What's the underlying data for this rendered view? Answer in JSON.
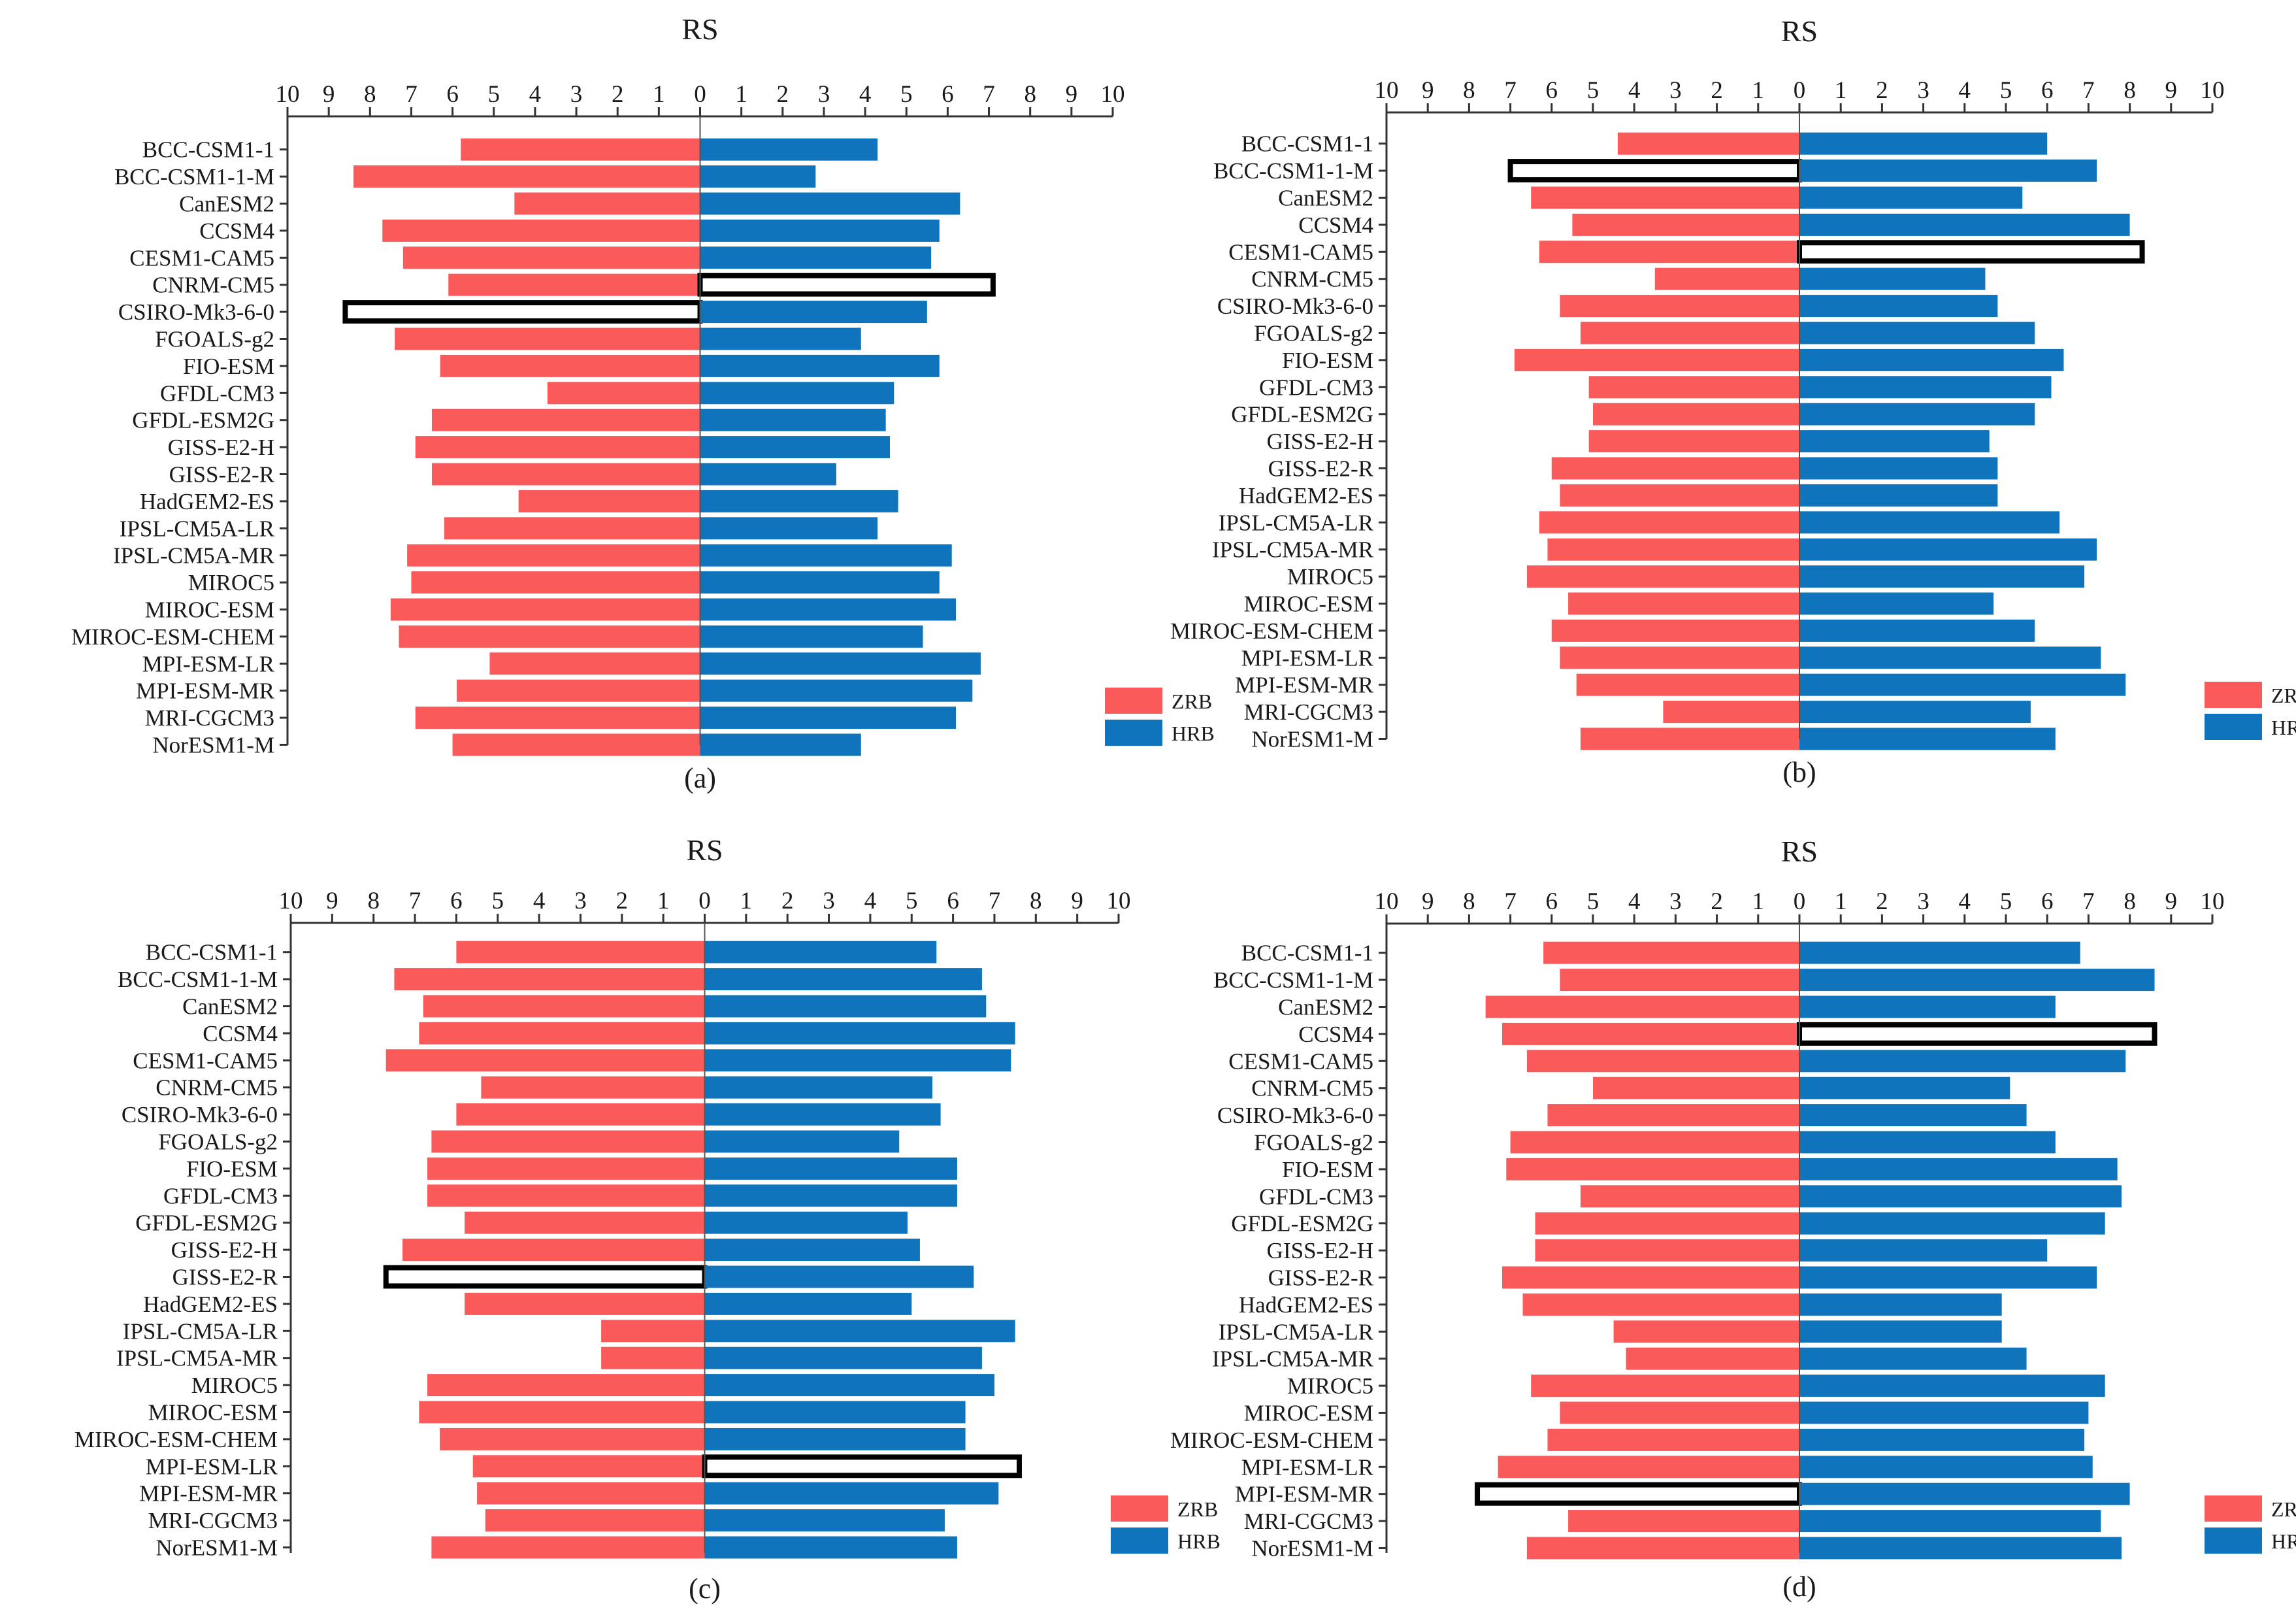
{
  "figure": {
    "panels": [
      "a",
      "b",
      "c",
      "d"
    ]
  },
  "chart_data": [
    {
      "type": "bar",
      "orientation": "horizontal-diverging",
      "panel_label": "(a)",
      "title": "RS",
      "x_ticks": [
        "10",
        "9",
        "8",
        "7",
        "6",
        "5",
        "4",
        "3",
        "2",
        "1",
        "0",
        "1",
        "2",
        "3",
        "4",
        "5",
        "6",
        "7",
        "8",
        "9",
        "10"
      ],
      "xlim": [
        -10,
        10
      ],
      "categories": [
        "BCC-CSM1-1",
        "BCC-CSM1-1-M",
        "CanESM2",
        "CCSM4",
        "CESM1-CAM5",
        "CNRM-CM5",
        "CSIRO-Mk3-6-0",
        "FGOALS-g2",
        "FIO-ESM",
        "GFDL-CM3",
        "GFDL-ESM2G",
        "GISS-E2-H",
        "GISS-E2-R",
        "HadGEM2-ES",
        "IPSL-CM5A-LR",
        "IPSL-CM5A-MR",
        "MIROC5",
        "MIROC-ESM",
        "MIROC-ESM-CHEM",
        "MPI-ESM-LR",
        "MPI-ESM-MR",
        "MRI-CGCM3",
        "NorESM1-M"
      ],
      "series": [
        {
          "name": "ZRB",
          "color": "#fa5a5a",
          "side": "left",
          "values": [
            5.8,
            8.4,
            4.5,
            7.7,
            7.2,
            6.1,
            8.6,
            7.4,
            6.3,
            3.7,
            6.5,
            6.9,
            6.5,
            4.4,
            6.2,
            7.1,
            7.0,
            7.5,
            7.3,
            5.1,
            5.9,
            6.9,
            6.0
          ],
          "highlighted": [
            false,
            false,
            false,
            false,
            false,
            false,
            true,
            false,
            false,
            false,
            false,
            false,
            false,
            false,
            false,
            false,
            false,
            false,
            false,
            false,
            false,
            false,
            false
          ]
        },
        {
          "name": "HRB",
          "color": "#0f74bb",
          "side": "right",
          "values": [
            4.3,
            2.8,
            6.3,
            5.8,
            5.6,
            7.1,
            5.5,
            3.9,
            5.8,
            4.7,
            4.5,
            4.6,
            3.3,
            4.8,
            4.3,
            6.1,
            5.8,
            6.2,
            5.4,
            6.8,
            6.6,
            6.2,
            3.9
          ],
          "highlighted": [
            false,
            false,
            false,
            false,
            false,
            true,
            false,
            false,
            false,
            false,
            false,
            false,
            false,
            false,
            false,
            false,
            false,
            false,
            false,
            false,
            false,
            false,
            false
          ]
        }
      ]
    },
    {
      "type": "bar",
      "orientation": "horizontal-diverging",
      "panel_label": "(b)",
      "title": "RS",
      "x_ticks": [
        "10",
        "9",
        "8",
        "7",
        "6",
        "5",
        "4",
        "3",
        "2",
        "1",
        "0",
        "1",
        "2",
        "3",
        "4",
        "5",
        "6",
        "7",
        "8",
        "9",
        "10"
      ],
      "xlim": [
        -10,
        10
      ],
      "categories": [
        "BCC-CSM1-1",
        "BCC-CSM1-1-M",
        "CanESM2",
        "CCSM4",
        "CESM1-CAM5",
        "CNRM-CM5",
        "CSIRO-Mk3-6-0",
        "FGOALS-g2",
        "FIO-ESM",
        "GFDL-CM3",
        "GFDL-ESM2G",
        "GISS-E2-H",
        "GISS-E2-R",
        "HadGEM2-ES",
        "IPSL-CM5A-LR",
        "IPSL-CM5A-MR",
        "MIROC5",
        "MIROC-ESM",
        "MIROC-ESM-CHEM",
        "MPI-ESM-LR",
        "MPI-ESM-MR",
        "MRI-CGCM3",
        "NorESM1-M"
      ],
      "series": [
        {
          "name": "ZRB",
          "color": "#fa5a5a",
          "side": "left",
          "values": [
            4.4,
            7.0,
            6.5,
            5.5,
            6.3,
            3.5,
            5.8,
            5.3,
            6.9,
            5.1,
            5.0,
            5.1,
            6.0,
            5.8,
            6.3,
            6.1,
            6.6,
            5.6,
            6.0,
            5.8,
            5.4,
            3.3,
            5.3
          ],
          "highlighted": [
            false,
            true,
            false,
            false,
            false,
            false,
            false,
            false,
            false,
            false,
            false,
            false,
            false,
            false,
            false,
            false,
            false,
            false,
            false,
            false,
            false,
            false,
            false
          ]
        },
        {
          "name": "HRB",
          "color": "#0f74bb",
          "side": "right",
          "values": [
            6.0,
            7.2,
            5.4,
            8.0,
            8.3,
            4.5,
            4.8,
            5.7,
            6.4,
            6.1,
            5.7,
            4.6,
            4.8,
            4.8,
            6.3,
            7.2,
            6.9,
            4.7,
            5.7,
            7.3,
            7.9,
            5.6,
            6.2
          ],
          "highlighted": [
            false,
            false,
            false,
            false,
            true,
            false,
            false,
            false,
            false,
            false,
            false,
            false,
            false,
            false,
            false,
            false,
            false,
            false,
            false,
            false,
            false,
            false,
            false
          ]
        }
      ]
    },
    {
      "type": "bar",
      "orientation": "horizontal-diverging",
      "panel_label": "(c)",
      "title": "RS",
      "x_ticks": [
        "10",
        "9",
        "8",
        "7",
        "6",
        "5",
        "4",
        "3",
        "2",
        "1",
        "0",
        "1",
        "2",
        "3",
        "4",
        "5",
        "6",
        "7",
        "8",
        "9",
        "10"
      ],
      "xlim": [
        -10,
        10
      ],
      "categories": [
        "BCC-CSM1-1",
        "BCC-CSM1-1-M",
        "CanESM2",
        "CCSM4",
        "CESM1-CAM5",
        "CNRM-CM5",
        "CSIRO-Mk3-6-0",
        "FGOALS-g2",
        "FIO-ESM",
        "GFDL-CM3",
        "GFDL-ESM2G",
        "GISS-E2-H",
        "GISS-E2-R",
        "HadGEM2-ES",
        "IPSL-CM5A-LR",
        "IPSL-CM5A-MR",
        "MIROC5",
        "MIROC-ESM",
        "MIROC-ESM-CHEM",
        "MPI-ESM-LR",
        "MPI-ESM-MR",
        "MRI-CGCM3",
        "NorESM1-M"
      ],
      "series": [
        {
          "name": "ZRB",
          "color": "#fa5a5a",
          "side": "left",
          "values": [
            6.0,
            7.5,
            6.8,
            6.9,
            7.7,
            5.4,
            6.0,
            6.6,
            6.7,
            6.7,
            5.8,
            7.3,
            7.7,
            5.8,
            2.5,
            2.5,
            6.7,
            6.9,
            6.4,
            5.6,
            5.5,
            5.3,
            6.6
          ],
          "highlighted": [
            false,
            false,
            false,
            false,
            false,
            false,
            false,
            false,
            false,
            false,
            false,
            false,
            true,
            false,
            false,
            false,
            false,
            false,
            false,
            false,
            false,
            false,
            false
          ]
        },
        {
          "name": "HRB",
          "color": "#0f74bb",
          "side": "right",
          "values": [
            5.6,
            6.7,
            6.8,
            7.5,
            7.4,
            5.5,
            5.7,
            4.7,
            6.1,
            6.1,
            4.9,
            5.2,
            6.5,
            5.0,
            7.5,
            6.7,
            7.0,
            6.3,
            6.3,
            7.6,
            7.1,
            5.8,
            6.1
          ],
          "highlighted": [
            false,
            false,
            false,
            false,
            false,
            false,
            false,
            false,
            false,
            false,
            false,
            false,
            false,
            false,
            false,
            false,
            false,
            false,
            false,
            true,
            false,
            false,
            false
          ]
        }
      ]
    },
    {
      "type": "bar",
      "orientation": "horizontal-diverging",
      "panel_label": "(d)",
      "title": "RS",
      "x_ticks": [
        "10",
        "9",
        "8",
        "7",
        "6",
        "5",
        "4",
        "3",
        "2",
        "1",
        "0",
        "1",
        "2",
        "3",
        "4",
        "5",
        "6",
        "7",
        "8",
        "9",
        "10"
      ],
      "xlim": [
        -10,
        10
      ],
      "categories": [
        "BCC-CSM1-1",
        "BCC-CSM1-1-M",
        "CanESM2",
        "CCSM4",
        "CESM1-CAM5",
        "CNRM-CM5",
        "CSIRO-Mk3-6-0",
        "FGOALS-g2",
        "FIO-ESM",
        "GFDL-CM3",
        "GFDL-ESM2G",
        "GISS-E2-H",
        "GISS-E2-R",
        "HadGEM2-ES",
        "IPSL-CM5A-LR",
        "IPSL-CM5A-MR",
        "MIROC5",
        "MIROC-ESM",
        "MIROC-ESM-CHEM",
        "MPI-ESM-LR",
        "MPI-ESM-MR",
        "MRI-CGCM3",
        "NorESM1-M"
      ],
      "series": [
        {
          "name": "ZRB",
          "color": "#fa5a5a",
          "side": "left",
          "values": [
            6.2,
            5.8,
            7.6,
            7.2,
            6.6,
            5.0,
            6.1,
            7.0,
            7.1,
            5.3,
            6.4,
            6.4,
            7.2,
            6.7,
            4.5,
            4.2,
            6.5,
            5.8,
            6.1,
            7.3,
            7.8,
            5.6,
            6.6
          ],
          "highlighted": [
            false,
            false,
            false,
            false,
            false,
            false,
            false,
            false,
            false,
            false,
            false,
            false,
            false,
            false,
            false,
            false,
            false,
            false,
            false,
            false,
            true,
            false,
            false
          ]
        },
        {
          "name": "HRB",
          "color": "#0f74bb",
          "side": "right",
          "values": [
            6.8,
            8.6,
            6.2,
            8.6,
            7.9,
            5.1,
            5.5,
            6.2,
            7.7,
            7.8,
            7.4,
            6.0,
            7.2,
            4.9,
            4.9,
            5.5,
            7.4,
            7.0,
            6.9,
            7.1,
            8.0,
            7.3,
            7.8
          ],
          "highlighted": [
            false,
            false,
            false,
            true,
            false,
            false,
            false,
            false,
            false,
            false,
            false,
            false,
            false,
            false,
            false,
            false,
            false,
            false,
            false,
            false,
            false,
            false,
            false
          ]
        }
      ]
    }
  ]
}
